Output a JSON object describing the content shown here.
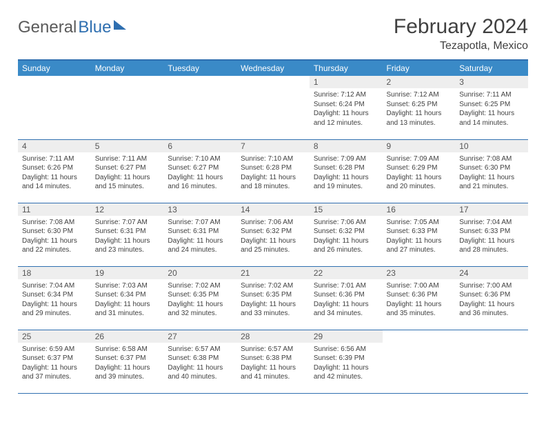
{
  "logo": {
    "part1": "General",
    "part2": "Blue"
  },
  "title": "February 2024",
  "location": "Tezapotla, Mexico",
  "colors": {
    "header_bg": "#3a8ac7",
    "border": "#2f6fb0",
    "daynum_bg": "#eeeeee",
    "text": "#404040"
  },
  "weekdays": [
    "Sunday",
    "Monday",
    "Tuesday",
    "Wednesday",
    "Thursday",
    "Friday",
    "Saturday"
  ],
  "weeks": [
    [
      {
        "n": "",
        "sr": "",
        "ss": "",
        "dl": ""
      },
      {
        "n": "",
        "sr": "",
        "ss": "",
        "dl": ""
      },
      {
        "n": "",
        "sr": "",
        "ss": "",
        "dl": ""
      },
      {
        "n": "",
        "sr": "",
        "ss": "",
        "dl": ""
      },
      {
        "n": "1",
        "sr": "Sunrise: 7:12 AM",
        "ss": "Sunset: 6:24 PM",
        "dl": "Daylight: 11 hours and 12 minutes."
      },
      {
        "n": "2",
        "sr": "Sunrise: 7:12 AM",
        "ss": "Sunset: 6:25 PM",
        "dl": "Daylight: 11 hours and 13 minutes."
      },
      {
        "n": "3",
        "sr": "Sunrise: 7:11 AM",
        "ss": "Sunset: 6:25 PM",
        "dl": "Daylight: 11 hours and 14 minutes."
      }
    ],
    [
      {
        "n": "4",
        "sr": "Sunrise: 7:11 AM",
        "ss": "Sunset: 6:26 PM",
        "dl": "Daylight: 11 hours and 14 minutes."
      },
      {
        "n": "5",
        "sr": "Sunrise: 7:11 AM",
        "ss": "Sunset: 6:27 PM",
        "dl": "Daylight: 11 hours and 15 minutes."
      },
      {
        "n": "6",
        "sr": "Sunrise: 7:10 AM",
        "ss": "Sunset: 6:27 PM",
        "dl": "Daylight: 11 hours and 16 minutes."
      },
      {
        "n": "7",
        "sr": "Sunrise: 7:10 AM",
        "ss": "Sunset: 6:28 PM",
        "dl": "Daylight: 11 hours and 18 minutes."
      },
      {
        "n": "8",
        "sr": "Sunrise: 7:09 AM",
        "ss": "Sunset: 6:28 PM",
        "dl": "Daylight: 11 hours and 19 minutes."
      },
      {
        "n": "9",
        "sr": "Sunrise: 7:09 AM",
        "ss": "Sunset: 6:29 PM",
        "dl": "Daylight: 11 hours and 20 minutes."
      },
      {
        "n": "10",
        "sr": "Sunrise: 7:08 AM",
        "ss": "Sunset: 6:30 PM",
        "dl": "Daylight: 11 hours and 21 minutes."
      }
    ],
    [
      {
        "n": "11",
        "sr": "Sunrise: 7:08 AM",
        "ss": "Sunset: 6:30 PM",
        "dl": "Daylight: 11 hours and 22 minutes."
      },
      {
        "n": "12",
        "sr": "Sunrise: 7:07 AM",
        "ss": "Sunset: 6:31 PM",
        "dl": "Daylight: 11 hours and 23 minutes."
      },
      {
        "n": "13",
        "sr": "Sunrise: 7:07 AM",
        "ss": "Sunset: 6:31 PM",
        "dl": "Daylight: 11 hours and 24 minutes."
      },
      {
        "n": "14",
        "sr": "Sunrise: 7:06 AM",
        "ss": "Sunset: 6:32 PM",
        "dl": "Daylight: 11 hours and 25 minutes."
      },
      {
        "n": "15",
        "sr": "Sunrise: 7:06 AM",
        "ss": "Sunset: 6:32 PM",
        "dl": "Daylight: 11 hours and 26 minutes."
      },
      {
        "n": "16",
        "sr": "Sunrise: 7:05 AM",
        "ss": "Sunset: 6:33 PM",
        "dl": "Daylight: 11 hours and 27 minutes."
      },
      {
        "n": "17",
        "sr": "Sunrise: 7:04 AM",
        "ss": "Sunset: 6:33 PM",
        "dl": "Daylight: 11 hours and 28 minutes."
      }
    ],
    [
      {
        "n": "18",
        "sr": "Sunrise: 7:04 AM",
        "ss": "Sunset: 6:34 PM",
        "dl": "Daylight: 11 hours and 29 minutes."
      },
      {
        "n": "19",
        "sr": "Sunrise: 7:03 AM",
        "ss": "Sunset: 6:34 PM",
        "dl": "Daylight: 11 hours and 31 minutes."
      },
      {
        "n": "20",
        "sr": "Sunrise: 7:02 AM",
        "ss": "Sunset: 6:35 PM",
        "dl": "Daylight: 11 hours and 32 minutes."
      },
      {
        "n": "21",
        "sr": "Sunrise: 7:02 AM",
        "ss": "Sunset: 6:35 PM",
        "dl": "Daylight: 11 hours and 33 minutes."
      },
      {
        "n": "22",
        "sr": "Sunrise: 7:01 AM",
        "ss": "Sunset: 6:36 PM",
        "dl": "Daylight: 11 hours and 34 minutes."
      },
      {
        "n": "23",
        "sr": "Sunrise: 7:00 AM",
        "ss": "Sunset: 6:36 PM",
        "dl": "Daylight: 11 hours and 35 minutes."
      },
      {
        "n": "24",
        "sr": "Sunrise: 7:00 AM",
        "ss": "Sunset: 6:36 PM",
        "dl": "Daylight: 11 hours and 36 minutes."
      }
    ],
    [
      {
        "n": "25",
        "sr": "Sunrise: 6:59 AM",
        "ss": "Sunset: 6:37 PM",
        "dl": "Daylight: 11 hours and 37 minutes."
      },
      {
        "n": "26",
        "sr": "Sunrise: 6:58 AM",
        "ss": "Sunset: 6:37 PM",
        "dl": "Daylight: 11 hours and 39 minutes."
      },
      {
        "n": "27",
        "sr": "Sunrise: 6:57 AM",
        "ss": "Sunset: 6:38 PM",
        "dl": "Daylight: 11 hours and 40 minutes."
      },
      {
        "n": "28",
        "sr": "Sunrise: 6:57 AM",
        "ss": "Sunset: 6:38 PM",
        "dl": "Daylight: 11 hours and 41 minutes."
      },
      {
        "n": "29",
        "sr": "Sunrise: 6:56 AM",
        "ss": "Sunset: 6:39 PM",
        "dl": "Daylight: 11 hours and 42 minutes."
      },
      {
        "n": "",
        "sr": "",
        "ss": "",
        "dl": ""
      },
      {
        "n": "",
        "sr": "",
        "ss": "",
        "dl": ""
      }
    ]
  ]
}
